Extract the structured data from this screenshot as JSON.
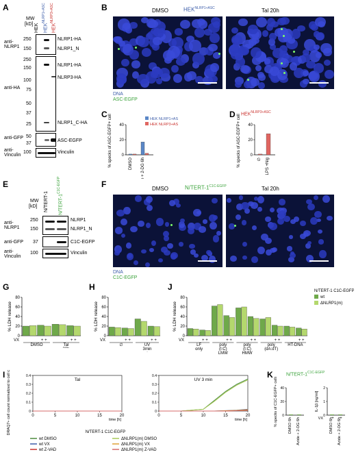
{
  "panels": [
    "A",
    "B",
    "C",
    "D",
    "E",
    "F",
    "G",
    "H",
    "I",
    "J",
    "K"
  ],
  "A": {
    "mw": "MW",
    "kd": "[kD]",
    "lanes": [
      "HEK",
      "HEK",
      "HEK"
    ],
    "lane_sup": [
      "",
      "NLRP1+ASC",
      "NLRP3+ASC"
    ],
    "row_labels": [
      "anti-NLRP1",
      "anti-HA",
      "anti-GFP",
      "anti-Vinculin"
    ],
    "mw_nlrp1": [
      "250",
      "150"
    ],
    "mw_ha": [
      "250",
      "150",
      "100",
      "75",
      "50",
      "37",
      "25"
    ],
    "mw_gfp": [
      "50",
      "37"
    ],
    "mw_vin": [
      "100"
    ],
    "bands": [
      "NLRP1-HA",
      "NLRP1_N",
      "NLRP1-HA",
      "NLRP3-HA",
      "NLRP1_C-HA",
      "ASC-EGFP",
      "Vinculin"
    ]
  },
  "B": {
    "title": "HEK",
    "title_sup": "NLRP1+ASC",
    "cond1": "DMSO",
    "cond2": "Tal 20h",
    "leg1": "DNA",
    "leg2": "ASC-EGFP"
  },
  "C": {
    "ylabel": "% specks of ASC-EGFP+ cells",
    "yticks": [
      "0",
      "20",
      "40"
    ],
    "leg1": "HEK",
    "leg1_sup": "NLRP1+ASC",
    "leg2": "HEK",
    "leg2_sup": "NLRP3+ASC",
    "xcats": [
      "DMSO",
      "Azide + 2-DG 6h"
    ]
  },
  "D": {
    "title": "HEK",
    "title_sup": "NLRP3+ASC",
    "ylabel": "% specks of ASC-EGFP+ cells",
    "yticks": [
      "0",
      "20",
      "40"
    ],
    "xcats": [
      "∅",
      "LPS +Nig"
    ]
  },
  "E": {
    "mw": "MW",
    "kd": "[kD]",
    "lanes": [
      "N/TERT-1",
      "N/TERT-1"
    ],
    "lane_sup": [
      "",
      "C1C-EGFP"
    ],
    "row_labels": [
      "anti-NLRP1",
      "anti-GFP",
      "anti-Vinculin"
    ],
    "mw_vals": [
      "250",
      "150",
      "37",
      "100"
    ],
    "bands": [
      "NLRP1",
      "NLRP1_N",
      "C1C-EGFP",
      "Vinculin"
    ]
  },
  "F": {
    "title": "N/TERT-1",
    "title_sup": "C1C-EGFP",
    "cond1": "DMSO",
    "cond2": "Tal 20h",
    "leg1": "DNA",
    "leg2": "C1C-EGFP"
  },
  "G": {
    "ylabel": "% LDH release",
    "yticks": [
      "0",
      "20",
      "40",
      "60",
      "80"
    ],
    "vx": "VX",
    "plus": "+ +",
    "groups": [
      "DMSO",
      "Tal 20h"
    ]
  },
  "H": {
    "ylabel": "% LDH release",
    "yticks": [
      "0",
      "20",
      "40",
      "60",
      "80"
    ],
    "vx": "VX",
    "plus": "+ +",
    "groups": [
      "∅",
      "UV 3min + 20h"
    ]
  },
  "J": {
    "ylabel": "% LDH release",
    "yticks": [
      "0",
      "20",
      "40",
      "60",
      "80"
    ],
    "legend_title": "N/TERT-1",
    "legend_title_sup": "C1C-EGFP",
    "legend": [
      "wt",
      "ΔNLRP1(m)"
    ],
    "vx": "VX",
    "plus": "+ +",
    "groups": [
      "LF only",
      "poly (I:C) LMW",
      "poly (I:C) HMW",
      "poly (dA:dT)",
      "HT-DNA"
    ]
  },
  "I": {
    "title1": "Tal",
    "title2": "UV 3 min",
    "ylabel": "DRAQ7+ cell count normalized to cell confluency",
    "xlabel": "time [h]",
    "yticks": [
      "0.4",
      "0.3",
      "0.2",
      "0.1",
      "0"
    ],
    "xticks": [
      "0",
      "5",
      "10",
      "15",
      "20"
    ],
    "legend_title": "N/TERT-1",
    "legend_title_sup": "C1C-EGFP",
    "legend": [
      "wt DMSO",
      "wt VX",
      "wt Z-VAD",
      "ΔNLRP1(m) DMSO",
      "ΔNLRP1(m) VX",
      "ΔNLRP1(m) Z-VAD"
    ],
    "colors": [
      "#4c8a3e",
      "#3a5ba8",
      "#c9302c",
      "#a7c957",
      "#e0a033",
      "#d46a6a"
    ]
  },
  "K": {
    "title": "N/TERT-1",
    "title_sup": "C1C-EGFP",
    "ylabel1": "% specks of C1C-EGFP+ cells",
    "ylabel2": "IL-1β [ng/ml]",
    "yticks1": [
      "0",
      "20",
      "40"
    ],
    "yticks2": [
      "0",
      "1",
      "2"
    ],
    "vx": "VX",
    "plus_single": "+",
    "cats": [
      "DMSO 6h",
      "Azide + 2-DG 6h"
    ]
  },
  "chart_data": [
    {
      "type": "bar",
      "panel": "C",
      "categories": [
        "DMSO",
        "Azide + 2-DG 6h"
      ],
      "series": [
        {
          "name": "HEK NLRP1+ASC",
          "values": [
            1,
            17
          ]
        },
        {
          "name": "HEK NLRP3+ASC",
          "values": [
            1,
            2
          ]
        }
      ],
      "ylim": [
        0,
        40
      ]
    },
    {
      "type": "bar",
      "panel": "D",
      "categories": [
        "∅",
        "LPS +Nig"
      ],
      "series": [
        {
          "name": "HEK NLRP3+ASC",
          "values": [
            1,
            28
          ]
        }
      ],
      "ylim": [
        0,
        40
      ]
    },
    {
      "type": "bar",
      "panel": "G",
      "categories": [
        "DMSO",
        "DMSO VX",
        "Tal 20h",
        "Tal 20h VX"
      ],
      "series": [
        {
          "name": "wt",
          "values": [
            20,
            22,
            24,
            21
          ]
        },
        {
          "name": "ΔNLRP1(m)",
          "values": [
            21,
            20,
            23,
            20
          ]
        }
      ],
      "ylim": [
        0,
        80
      ]
    },
    {
      "type": "bar",
      "panel": "H",
      "categories": [
        "∅",
        "∅ VX",
        "UV 3min + 20h",
        "UV 3min + 20h VX"
      ],
      "series": [
        {
          "name": "wt",
          "values": [
            18,
            16,
            35,
            20
          ]
        },
        {
          "name": "ΔNLRP1(m)",
          "values": [
            17,
            15,
            30,
            19
          ]
        }
      ],
      "ylim": [
        0,
        80
      ]
    },
    {
      "type": "bar",
      "panel": "J",
      "categories": [
        "LF only",
        "LF only VX",
        "poly (I:C) LMW",
        "poly (I:C) LMW VX",
        "poly (I:C) HMW",
        "poly (I:C) HMW VX",
        "poly (dA:dT)",
        "poly (dA:dT) VX",
        "HT-DNA",
        "HT-DNA VX"
      ],
      "series": [
        {
          "name": "wt",
          "values": [
            15,
            12,
            62,
            42,
            58,
            40,
            35,
            22,
            20,
            16
          ]
        },
        {
          "name": "ΔNLRP1(m)",
          "values": [
            14,
            11,
            65,
            38,
            60,
            36,
            38,
            20,
            18,
            14
          ]
        }
      ],
      "ylim": [
        0,
        80
      ]
    },
    {
      "type": "line",
      "panel": "I-Tal",
      "x": [
        0,
        5,
        10,
        15,
        20
      ],
      "series": [
        {
          "name": "wt DMSO",
          "values": [
            0,
            0,
            0,
            0,
            0
          ]
        },
        {
          "name": "wt VX",
          "values": [
            0,
            0,
            0,
            0,
            0
          ]
        },
        {
          "name": "wt Z-VAD",
          "values": [
            0,
            0,
            0,
            0,
            0
          ]
        },
        {
          "name": "ΔNLRP1(m) DMSO",
          "values": [
            0,
            0,
            0,
            0,
            0
          ]
        },
        {
          "name": "ΔNLRP1(m) VX",
          "values": [
            0,
            0,
            0,
            0,
            0
          ]
        },
        {
          "name": "ΔNLRP1(m) Z-VAD",
          "values": [
            0,
            0,
            0,
            0,
            0
          ]
        }
      ],
      "xlabel": "time [h]",
      "ylim": [
        0,
        0.4
      ]
    },
    {
      "type": "line",
      "panel": "I-UV",
      "x": [
        0,
        5,
        10,
        12.5,
        15,
        17.5,
        20
      ],
      "series": [
        {
          "name": "wt DMSO",
          "values": [
            0,
            0,
            0.02,
            0.12,
            0.22,
            0.3,
            0.36
          ]
        },
        {
          "name": "wt VX",
          "values": [
            0,
            0,
            0,
            0,
            0.005,
            0.01,
            0.02
          ]
        },
        {
          "name": "wt Z-VAD",
          "values": [
            0,
            0,
            0,
            0,
            0,
            0.005,
            0.01
          ]
        },
        {
          "name": "ΔNLRP1(m) DMSO",
          "values": [
            0,
            0,
            0.02,
            0.11,
            0.21,
            0.29,
            0.35
          ]
        },
        {
          "name": "ΔNLRP1(m) VX",
          "values": [
            0,
            0,
            0,
            0,
            0.004,
            0.008,
            0.015
          ]
        },
        {
          "name": "ΔNLRP1(m) Z-VAD",
          "values": [
            0,
            0,
            0,
            0,
            0,
            0.004,
            0.008
          ]
        }
      ],
      "xlabel": "time [h]",
      "ylim": [
        0,
        0.4
      ]
    },
    {
      "type": "bar",
      "panel": "K",
      "categories": [
        "DMSO 6h",
        "Azide + 2-DG 6h"
      ],
      "series": [
        {
          "name": "specks",
          "values": [
            0,
            0
          ]
        },
        {
          "name": "IL-1β",
          "values": [
            0,
            0
          ]
        }
      ],
      "ylim": [
        0,
        40
      ]
    }
  ]
}
